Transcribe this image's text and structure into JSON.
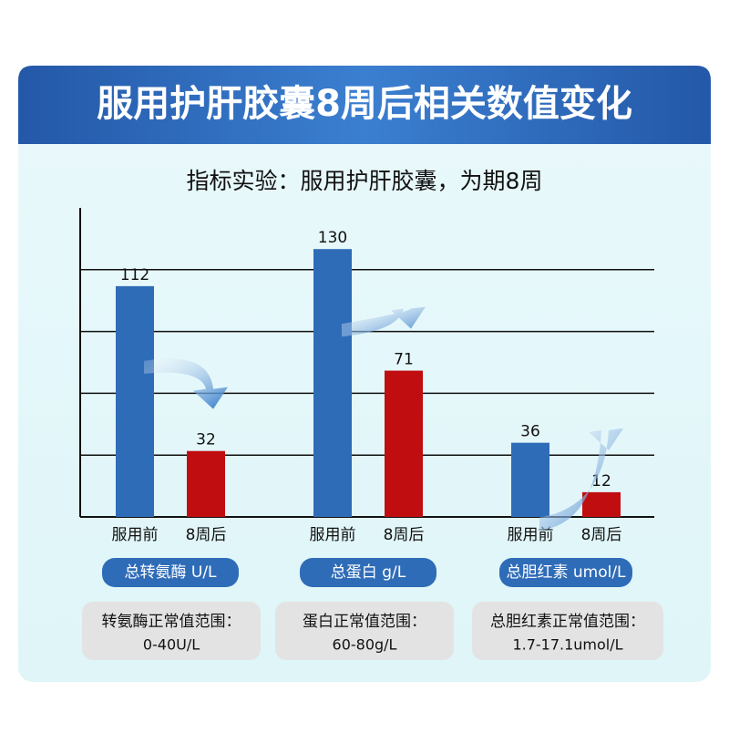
{
  "chart_data": {
    "type": "bar",
    "title": "服用护肝胶囊8周后相关数值变化",
    "subtitle": "指标实验：服用护肝胶囊，为期8周",
    "categories": [
      "总转氨酶 U/L",
      "总蛋白 g/L",
      "总胆红素 umol/L"
    ],
    "series": [
      {
        "name": "服用前",
        "color": "#2f6cb8",
        "values": [
          112,
          130,
          36
        ]
      },
      {
        "name": "8周后",
        "color": "#c00d10",
        "values": [
          32,
          71,
          12
        ]
      }
    ],
    "ylim": [
      0,
      150
    ],
    "yticks": [
      30,
      60,
      90,
      120
    ],
    "grid": true,
    "notes": [
      {
        "title": "转氨酶正常值范围：",
        "range": "0-40U/L"
      },
      {
        "title": "蛋白正常值范围：",
        "range": "60-80g/L"
      },
      {
        "title": "总胆红素正常值范围：",
        "range": "1.7-17.1umol/L"
      }
    ]
  }
}
